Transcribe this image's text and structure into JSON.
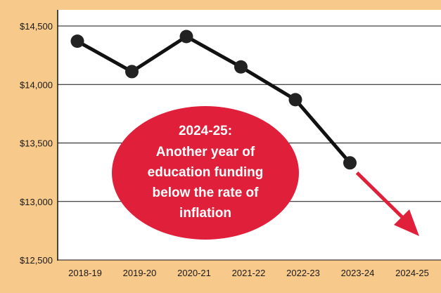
{
  "chart_data": {
    "type": "line",
    "categories": [
      "2018-19",
      "2019-20",
      "2020-21",
      "2021-22",
      "2022-23",
      "2023-24",
      "2024-25"
    ],
    "series": [
      {
        "values": [
          14370,
          14110,
          14410,
          14150,
          13870,
          13330,
          null
        ]
      }
    ],
    "yticks": [
      "$14,500",
      "$14,000",
      "$13,500",
      "$13,000",
      "$12,500"
    ],
    "ylim": [
      12500,
      14500
    ],
    "grid": true,
    "title": "",
    "xlabel": "",
    "ylabel": "",
    "trend_arrow": {
      "from_category": "2023-24",
      "direction": "down"
    },
    "annotation": {
      "lines": [
        "2024-25:",
        "Another year of",
        "education funding",
        "below the rate of",
        "inflation"
      ]
    },
    "colors": {
      "background": "#f7c98a",
      "plot_background": "#ffffff",
      "line": "#111111",
      "marker": "#222222",
      "arrow": "#e0203a",
      "callout": "#e0203a",
      "grid": "#111111"
    }
  }
}
